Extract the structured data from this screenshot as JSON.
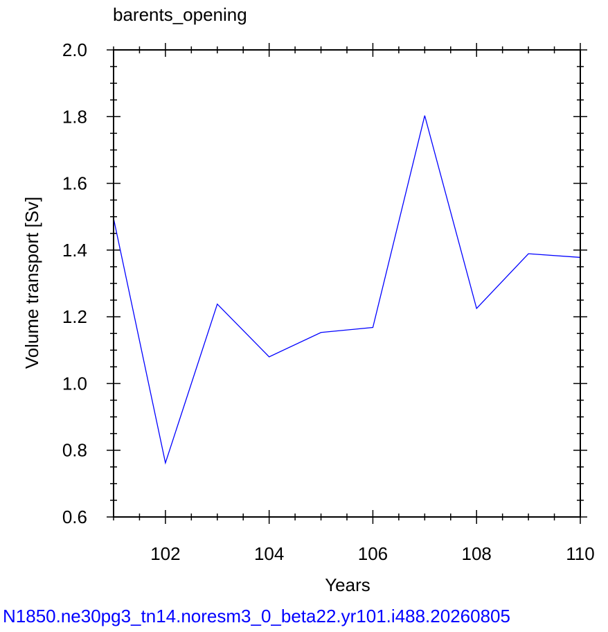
{
  "chart_data": {
    "type": "line",
    "title": "barents_opening",
    "xlabel": "Years",
    "ylabel": "Volume transport [Sv]",
    "xlim": [
      101,
      110
    ],
    "ylim": [
      0.6,
      2.0
    ],
    "x_ticks": [
      102,
      104,
      106,
      108,
      110
    ],
    "x_tick_labels": [
      "102",
      "104",
      "106",
      "108",
      "110"
    ],
    "y_ticks": [
      0.6,
      0.8,
      1.0,
      1.2,
      1.4,
      1.6,
      1.8,
      2.0
    ],
    "y_tick_labels": [
      "0.6",
      "0.8",
      "1.0",
      "1.2",
      "1.4",
      "1.6",
      "1.8",
      "2.0"
    ],
    "x_minor_step": 0.5,
    "y_minor_step": 0.05,
    "grid": false,
    "series": [
      {
        "x": [
          101,
          102,
          103,
          104,
          105,
          106,
          107,
          108,
          109,
          110
        ],
        "values": [
          1.495,
          0.762,
          1.238,
          1.08,
          1.153,
          1.168,
          1.803,
          1.225,
          1.389,
          1.378
        ],
        "color": "#0000ff"
      }
    ]
  },
  "footer": {
    "text": "N1850.ne30pg3_tn14.noresm3_0_beta22.yr101.i488.20260805",
    "color": "#0000ff"
  }
}
